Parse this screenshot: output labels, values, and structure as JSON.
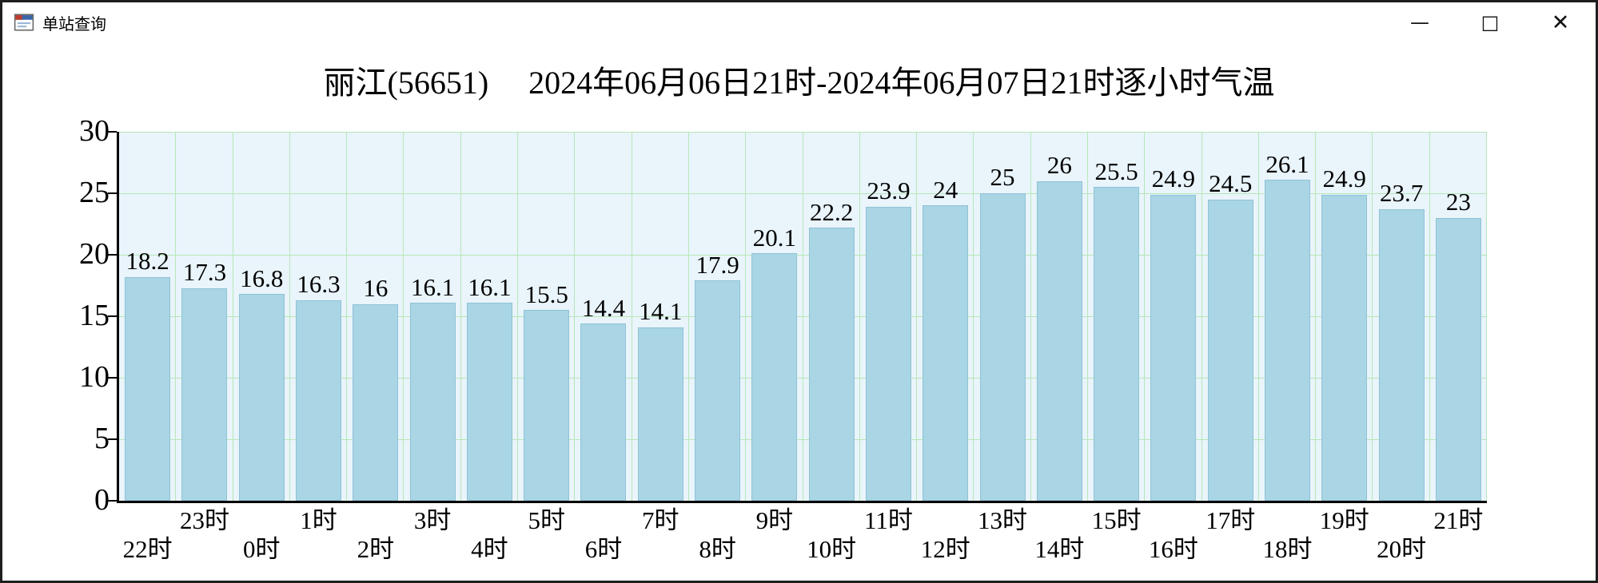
{
  "window": {
    "title": "单站查询",
    "controls": {
      "minimize": "—",
      "maximize": "□",
      "close": "✕"
    }
  },
  "chart_data": {
    "type": "bar",
    "title": "丽江(56651)　 2024年06月06日21时-2024年06月07日21时逐小时气温",
    "xlabel": "",
    "ylabel": "",
    "categories": [
      "22时",
      "23时",
      "0时",
      "1时",
      "2时",
      "3时",
      "4时",
      "5时",
      "6时",
      "7时",
      "8时",
      "9时",
      "10时",
      "11时",
      "12时",
      "13时",
      "14时",
      "15时",
      "16时",
      "17时",
      "18时",
      "19时",
      "20时",
      "21时"
    ],
    "values": [
      18.2,
      17.3,
      16.8,
      16.3,
      16,
      16.1,
      16.1,
      15.5,
      14.4,
      14.1,
      17.9,
      20.1,
      22.2,
      23.9,
      24,
      25,
      26,
      25.5,
      24.9,
      24.5,
      26.1,
      24.9,
      23.7,
      23
    ],
    "value_labels": [
      "18.2",
      "17.3",
      "16.8",
      "16.3",
      "16",
      "16.1",
      "16.1",
      "15.5",
      "14.4",
      "14.1",
      "17.9",
      "20.1",
      "22.2",
      "23.9",
      "24",
      "25",
      "26",
      "25.5",
      "24.9",
      "24.5",
      "26.1",
      "24.9",
      "23.7",
      "23"
    ],
    "ylim": [
      0,
      30
    ],
    "yticks": [
      0,
      5,
      10,
      15,
      20,
      25,
      30
    ],
    "grid": true,
    "legend": "none",
    "x_label_stagger": "even-low-odd-high",
    "colors": {
      "bar": "#a9d5e4",
      "bar_border": "#8fc3d6",
      "plot_bg": "#e9f4fb",
      "grid": "#b7e7b7",
      "axis": "#000000",
      "text": "#000000"
    }
  }
}
